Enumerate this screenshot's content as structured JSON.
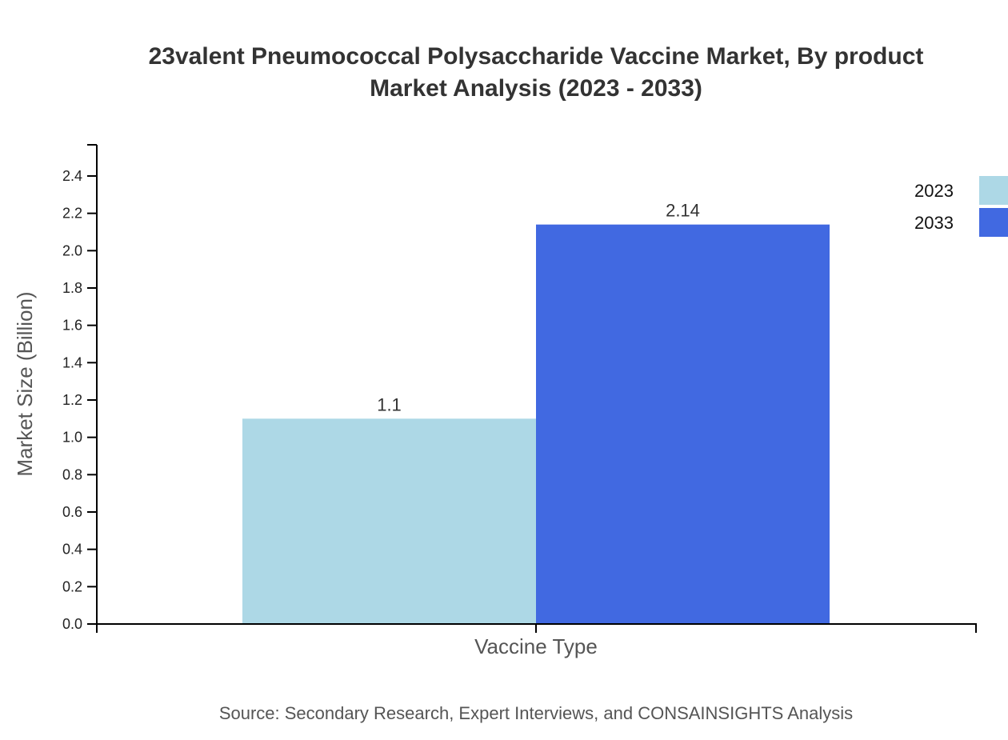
{
  "chart_data": {
    "type": "bar",
    "title": "23valent Pneumococcal Polysaccharide Vaccine Market, By product Market Analysis (2023 - 2033)",
    "title_lines": [
      "23valent Pneumococcal Polysaccharide Vaccine Market, By product",
      "Market Analysis (2023 - 2033)"
    ],
    "xlabel": "Vaccine Type",
    "ylabel": "Market Size (Billion)",
    "categories": [
      ""
    ],
    "series": [
      {
        "name": "2023",
        "values": [
          1.1
        ],
        "color": "#add8e6"
      },
      {
        "name": "2033",
        "values": [
          2.14
        ],
        "color": "#4169e1"
      }
    ],
    "ylim": [
      0,
      2.57
    ],
    "yticks": [
      "0.0",
      "0.2",
      "0.4",
      "0.6",
      "0.8",
      "1.0",
      "1.2",
      "1.4",
      "1.6",
      "1.8",
      "2.0",
      "2.2",
      "2.4"
    ],
    "grid": false,
    "legend_position": "top-right",
    "source": "Source: Secondary Research, Expert Interviews, and CONSAINSIGHTS Analysis"
  }
}
